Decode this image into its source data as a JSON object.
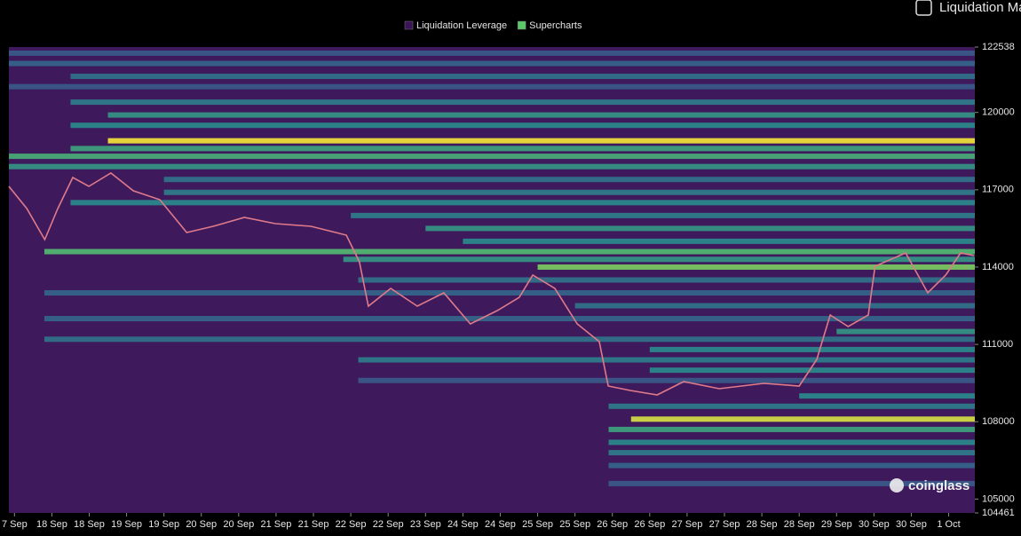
{
  "header": {
    "toggle_label": "Liquidation Ma"
  },
  "chart_data": {
    "type": "heatmap",
    "legend": [
      {
        "name": "Liquidation Leverage",
        "color": "#3b1457"
      },
      {
        "name": "Supercharts",
        "color": "#5cc86a"
      }
    ],
    "watermark": "coinglass",
    "categories": [
      "7 Sep",
      "18 Sep",
      "18 Sep",
      "19 Sep",
      "19 Sep",
      "20 Sep",
      "20 Sep",
      "21 Sep",
      "21 Sep",
      "22 Sep",
      "22 Sep",
      "23 Sep",
      "24 Sep",
      "24 Sep",
      "25 Sep",
      "25 Sep",
      "26 Sep",
      "26 Sep",
      "27 Sep",
      "27 Sep",
      "28 Sep",
      "28 Sep",
      "29 Sep",
      "30 Sep",
      "30 Sep",
      "1 Oct"
    ],
    "xlim": [
      -0.15,
      25.7
    ],
    "ylim": [
      104461,
      122538
    ],
    "yticks": [
      122538,
      120000,
      117000,
      114000,
      111000,
      108000,
      105000,
      104461
    ],
    "colormap": [
      "#3e1a5c",
      "#3b4f8a",
      "#2a8c8c",
      "#5cc86a",
      "#f6e83a"
    ],
    "levels": [
      {
        "price": 122300,
        "start": -0.15,
        "intensity": 0.3
      },
      {
        "price": 121900,
        "start": -0.15,
        "intensity": 0.35
      },
      {
        "price": 121400,
        "start": 1.5,
        "intensity": 0.4
      },
      {
        "price": 121000,
        "start": -0.15,
        "intensity": 0.3
      },
      {
        "price": 120400,
        "start": 1.5,
        "intensity": 0.45
      },
      {
        "price": 119900,
        "start": 2.5,
        "intensity": 0.55
      },
      {
        "price": 119500,
        "start": 1.5,
        "intensity": 0.5
      },
      {
        "price": 118900,
        "start": 2.5,
        "intensity": 1.0
      },
      {
        "price": 118600,
        "start": 1.5,
        "intensity": 0.6
      },
      {
        "price": 118300,
        "start": -0.15,
        "intensity": 0.65
      },
      {
        "price": 117900,
        "start": -0.15,
        "intensity": 0.55
      },
      {
        "price": 117400,
        "start": 4,
        "intensity": 0.4
      },
      {
        "price": 116900,
        "start": 4,
        "intensity": 0.45
      },
      {
        "price": 116500,
        "start": 1.5,
        "intensity": 0.5
      },
      {
        "price": 116000,
        "start": 9,
        "intensity": 0.45
      },
      {
        "price": 115500,
        "start": 11,
        "intensity": 0.55
      },
      {
        "price": 115000,
        "start": 12,
        "intensity": 0.5
      },
      {
        "price": 114600,
        "start": 0.8,
        "intensity": 0.7
      },
      {
        "price": 114300,
        "start": 8.8,
        "intensity": 0.55
      },
      {
        "price": 114000,
        "start": 14,
        "intensity": 0.8
      },
      {
        "price": 113500,
        "start": 9.2,
        "intensity": 0.4
      },
      {
        "price": 113000,
        "start": 0.8,
        "intensity": 0.35
      },
      {
        "price": 112500,
        "start": 15,
        "intensity": 0.4
      },
      {
        "price": 112000,
        "start": 0.8,
        "intensity": 0.35
      },
      {
        "price": 111500,
        "start": 22,
        "intensity": 0.55
      },
      {
        "price": 111200,
        "start": 0.8,
        "intensity": 0.4
      },
      {
        "price": 110800,
        "start": 17,
        "intensity": 0.5
      },
      {
        "price": 110400,
        "start": 9.2,
        "intensity": 0.45
      },
      {
        "price": 110000,
        "start": 17,
        "intensity": 0.5
      },
      {
        "price": 109600,
        "start": 9.2,
        "intensity": 0.3
      },
      {
        "price": 109000,
        "start": 21,
        "intensity": 0.5
      },
      {
        "price": 108600,
        "start": 15.9,
        "intensity": 0.45
      },
      {
        "price": 108100,
        "start": 16.5,
        "intensity": 0.95
      },
      {
        "price": 107700,
        "start": 15.9,
        "intensity": 0.6
      },
      {
        "price": 107200,
        "start": 15.9,
        "intensity": 0.5
      },
      {
        "price": 106800,
        "start": 15.9,
        "intensity": 0.45
      },
      {
        "price": 106300,
        "start": 15.9,
        "intensity": 0.35
      },
      {
        "price": 105600,
        "start": 15.9,
        "intensity": 0.3
      }
    ],
    "price": {
      "color": "#e07a8a",
      "x": [
        -0.15,
        0.33,
        0.81,
        1.16,
        1.56,
        1.99,
        2.58,
        3.18,
        3.89,
        4.61,
        5.32,
        6.15,
        6.98,
        7.93,
        8.88,
        9.23,
        9.47,
        10.07,
        10.78,
        11.49,
        12.2,
        12.92,
        13.51,
        13.87,
        14.46,
        15.06,
        15.65,
        15.89,
        16.48,
        17.2,
        17.91,
        18.86,
        20.05,
        21.0,
        21.47,
        21.83,
        22.31,
        22.85,
        23.03,
        23.85,
        24.44,
        24.92,
        25.32,
        25.68
      ],
      "values": [
        117132,
        116272,
        115066,
        116272,
        117477,
        117132,
        117649,
        116960,
        116616,
        115342,
        115583,
        115927,
        115686,
        115583,
        115238,
        114205,
        112484,
        113172,
        112484,
        113000,
        111795,
        112311,
        112828,
        113689,
        113172,
        111795,
        111106,
        109385,
        109213,
        109040,
        109557,
        109281,
        109488,
        109385,
        110418,
        112139,
        111692,
        112139,
        114033,
        114549,
        113000,
        113689,
        114549,
        114446
      ]
    }
  }
}
